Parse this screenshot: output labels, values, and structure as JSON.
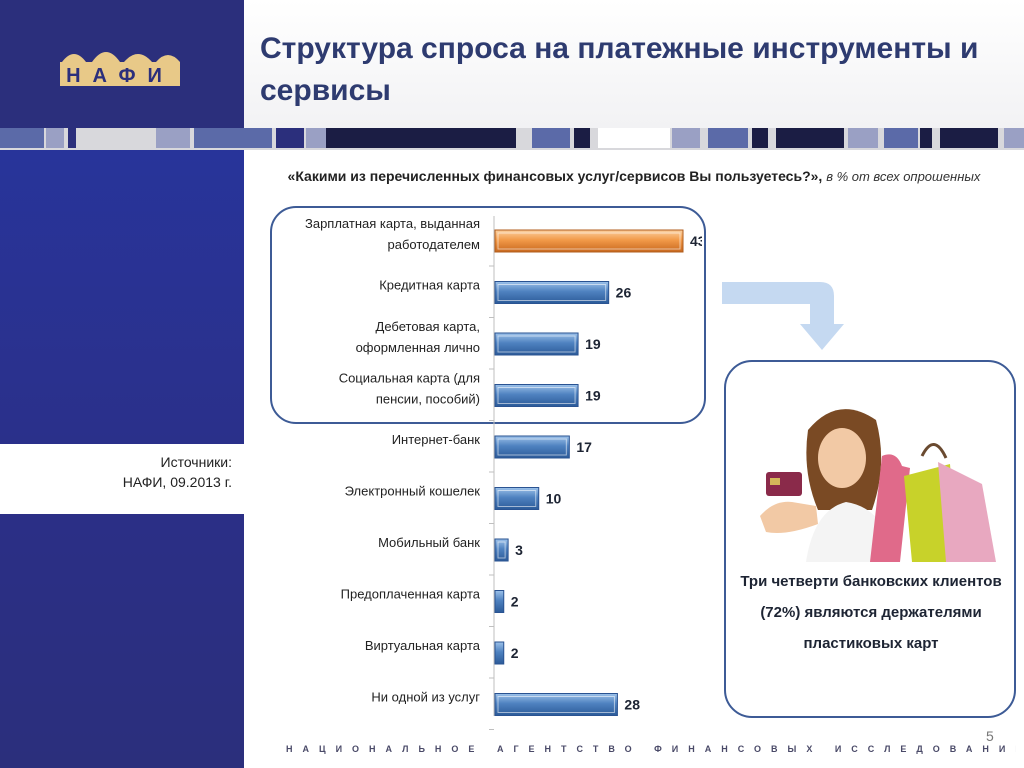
{
  "logo": {
    "text": "НАФИ",
    "icon": "nafi-logo-icon"
  },
  "title": "Структура спроса на платежные инструменты и сервисы",
  "question": {
    "main": "«Какими из перечисленных финансовых услуг/сервисов  Вы пользуетесь?»,",
    "note": "в % от всех опрошенных"
  },
  "sources": {
    "label": "Источники:",
    "text": "НАФИ, 09.2013 г."
  },
  "colors": {
    "sidebar": "#2b2f7c",
    "title": "#2e3b70",
    "bar_blue": "#4f82c0",
    "bar_highlight": "#f29a49",
    "frame": "#3d5b96"
  },
  "chart_data": {
    "type": "bar",
    "orientation": "horizontal",
    "categories": [
      [
        "Зарплатная  карта, выданная",
        "работодателем"
      ],
      [
        "Кредитная карта"
      ],
      [
        "Дебетовая карта,",
        "оформленная лично"
      ],
      [
        "Социальная карта (для",
        "пенсии, пособий)"
      ],
      [
        "Интернет-банк"
      ],
      [
        "Электронный кошелек"
      ],
      [
        "Мобильный банк"
      ],
      [
        "Предоплаченная карта"
      ],
      [
        "Виртуальная карта"
      ],
      [
        "Ни одной из услуг"
      ]
    ],
    "values": [
      43,
      26,
      19,
      19,
      17,
      10,
      3,
      2,
      2,
      28
    ],
    "highlight_index": 0,
    "xlim": [
      0,
      50
    ],
    "title": "",
    "xlabel": "",
    "ylabel": ""
  },
  "callout": {
    "text": "Три четверти банковских клиентов (72%) являются держателями пластиковых карт",
    "photo": "woman-with-card-and-shopping-bags"
  },
  "page_number": "5",
  "footer": "НАЦИОНАЛЬНОЕ АГЕНТСТВО ФИНАНСОВЫХ ИССЛЕДОВАНИЙ"
}
